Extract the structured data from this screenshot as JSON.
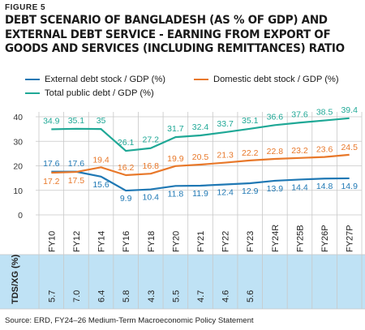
{
  "figure_label": "FIGURE 5",
  "title_lines": [
    "DEBT SCENARIO OF BANGLADESH (AS % OF GDP) AND",
    "EXTERNAL DEBT SERVICE - EARNING FROM EXPORT OF",
    "GOODS AND SERVICES (INCLUDING REMITTANCES) RATIO"
  ],
  "source": "Source: ERD, FY24–26 Medium-Term Macroeconomic Policy Statement",
  "chart_data": {
    "type": "line",
    "categories": [
      "FY10",
      "FY12",
      "FY14",
      "FY16",
      "FY18",
      "FY20",
      "FY21",
      "FY22",
      "FY23",
      "FY24R",
      "FY25B",
      "FY26P",
      "FY27P"
    ],
    "ylim": [
      0,
      40
    ],
    "yticks": [
      0,
      10,
      20,
      30,
      40
    ],
    "grid": true,
    "legend_position": "top",
    "series": [
      {
        "name": "External debt stock / GDP (%)",
        "color": "#1f78b4",
        "values": [
          17.6,
          17.6,
          15.6,
          9.9,
          10.4,
          11.8,
          11.9,
          12.4,
          12.9,
          13.9,
          14.4,
          14.8,
          14.9
        ],
        "labels": [
          "17.6",
          "17.6",
          "15.6",
          "9.9",
          "10.4",
          "11.8",
          "11.9",
          "12.4",
          "12.9",
          "13.9",
          "14.4",
          "14.8",
          "14.9"
        ]
      },
      {
        "name": "Domestic debt stock / GDP (%)",
        "color": "#e8782a",
        "values": [
          17.2,
          17.5,
          19.4,
          16.2,
          16.8,
          19.9,
          20.5,
          21.3,
          22.2,
          22.8,
          23.2,
          23.6,
          24.5
        ],
        "labels": [
          "17.2",
          "17.5",
          "19.4",
          "16.2",
          "16.8",
          "19.9",
          "20.5",
          "21.3",
          "22.2",
          "22.8",
          "23.2",
          "23.6",
          "24.5"
        ]
      },
      {
        "name": "Total public debt / GDP (%)",
        "color": "#1fa896",
        "values": [
          34.9,
          35.1,
          35.0,
          26.1,
          27.2,
          31.7,
          32.4,
          33.7,
          35.1,
          36.6,
          37.6,
          38.5,
          39.4
        ],
        "labels": [
          "34.9",
          "35.1",
          "35",
          "26.1",
          "27.2",
          "31.7",
          "32.4",
          "33.7",
          "35.1",
          "36.6",
          "37.6",
          "38.5",
          "39.4"
        ]
      }
    ],
    "table": {
      "row_label": "TDS/XG (%)",
      "values": [
        "5.7",
        "7.0",
        "6.4",
        "5.8",
        "4.3",
        "5.5",
        "4.7",
        "4.6",
        "5.6",
        "",
        "",
        "",
        ""
      ],
      "color": "#bfe2f5"
    }
  }
}
